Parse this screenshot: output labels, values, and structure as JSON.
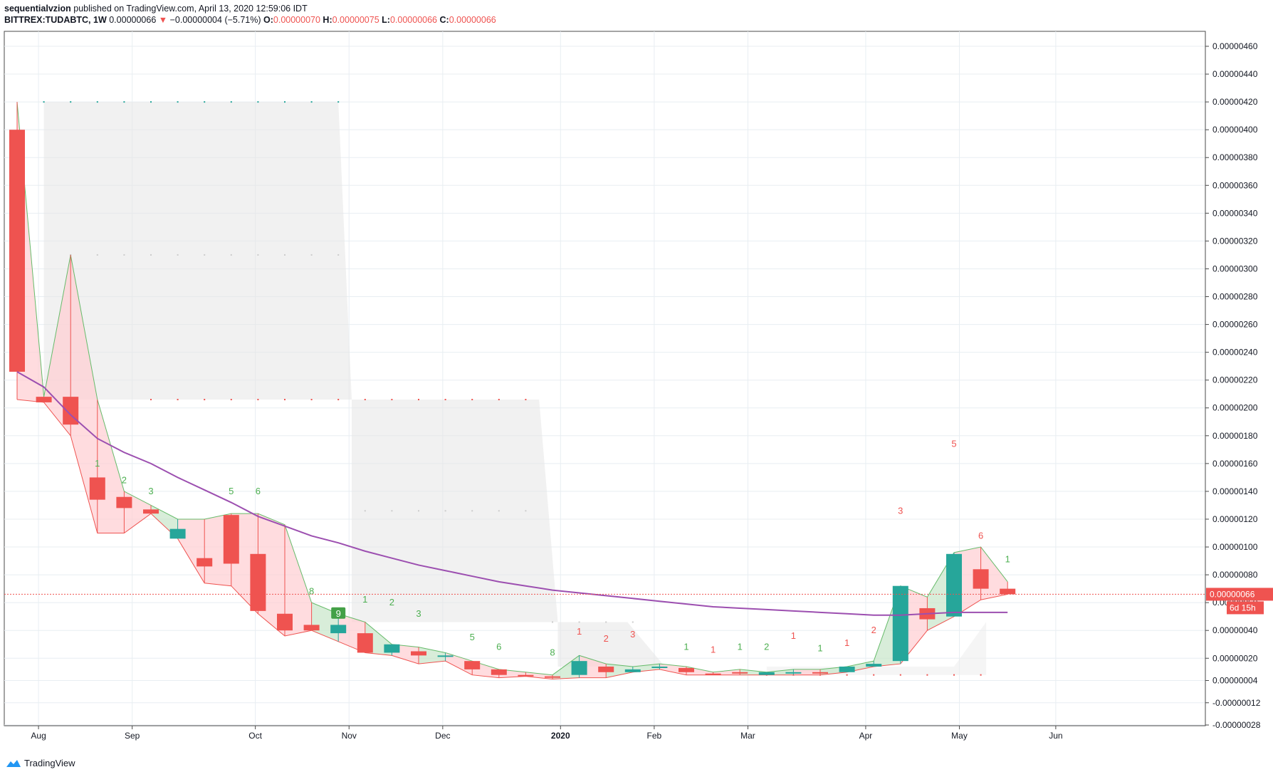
{
  "header": {
    "author": "sequentialvzion",
    "published_text": "published on TradingView.com, April 13, 2020 12:59:06 IDT",
    "symbol": "BITTREX:TUDABTC, 1W",
    "last": "0.00000066",
    "arrow": "▼",
    "change": "−0.00000004 (−5.71%)",
    "o_label": "O:",
    "o_value": "0.00000070",
    "h_label": "H:",
    "h_value": "0.00000075",
    "l_label": "L:",
    "l_value": "0.00000066",
    "c_label": "C:",
    "c_value": "0.00000066"
  },
  "footer": {
    "brand": "TradingView"
  },
  "colors": {
    "up": "#26a69a",
    "down": "#ef5350",
    "ma": "#9c4fb0",
    "grid": "#e8eef2",
    "label_bg": "#ef5350"
  },
  "chart_data": {
    "type": "candlestick",
    "xaxis_labels": [
      "Aug",
      "Sep",
      "Oct",
      "Nov",
      "Dec",
      "2020",
      "Feb",
      "Mar",
      "Apr",
      "May",
      "Jun"
    ],
    "yaxis_ticks": [
      "0.00000460",
      "0.00000440",
      "0.00000420",
      "0.00000400",
      "0.00000380",
      "0.00000360",
      "0.00000340",
      "0.00000320",
      "0.00000300",
      "0.00000280",
      "0.00000260",
      "0.00000240",
      "0.00000220",
      "0.00000200",
      "0.00000180",
      "0.00000160",
      "0.00000140",
      "0.00000120",
      "0.00000100",
      "0.00000080",
      "0.00000060",
      "0.00000040",
      "0.00000020",
      "0.00000004",
      "-0.00000012",
      "-0.00000028"
    ],
    "yaxis_values": [
      460,
      440,
      420,
      400,
      380,
      360,
      340,
      320,
      300,
      280,
      260,
      240,
      220,
      200,
      180,
      160,
      140,
      120,
      100,
      80,
      60,
      40,
      20,
      4,
      -12,
      -28
    ],
    "units": "1e-8 BTC",
    "last_price_label": "0.00000066",
    "countdown_label": "6d 15h",
    "candles": [
      {
        "o": 400,
        "h": 420,
        "l": 206,
        "c": 226
      },
      {
        "o": 208,
        "h": 206,
        "l": 206,
        "c": 204
      },
      {
        "o": 208,
        "h": 310,
        "l": 180,
        "c": 188
      },
      {
        "o": 150,
        "h": 206,
        "l": 110,
        "c": 134
      },
      {
        "o": 136,
        "h": 140,
        "l": 110,
        "c": 128
      },
      {
        "o": 127,
        "h": 130,
        "l": 124,
        "c": 124
      },
      {
        "o": 106,
        "h": 120,
        "l": 110,
        "c": 113
      },
      {
        "o": 92,
        "h": 120,
        "l": 74,
        "c": 86
      },
      {
        "o": 123,
        "h": 124,
        "l": 72,
        "c": 88
      },
      {
        "o": 95,
        "h": 124,
        "l": 52,
        "c": 54
      },
      {
        "o": 52,
        "h": 116,
        "l": 36,
        "c": 40
      },
      {
        "o": 44,
        "h": 60,
        "l": 42,
        "c": 40
      },
      {
        "o": 38,
        "h": 52,
        "l": 32,
        "c": 44
      },
      {
        "o": 38,
        "h": 46,
        "l": 26,
        "c": 24
      },
      {
        "o": 24,
        "h": 30,
        "l": 22,
        "c": 30
      },
      {
        "o": 25,
        "h": 28,
        "l": 16,
        "c": 22
      },
      {
        "o": 22,
        "h": 24,
        "l": 18,
        "c": 22
      },
      {
        "o": 18,
        "h": 18,
        "l": 8,
        "c": 12
      },
      {
        "o": 12,
        "h": 12,
        "l": 6,
        "c": 8
      },
      {
        "o": 8,
        "h": 10,
        "l": 7,
        "c": 7
      },
      {
        "o": 7,
        "h": 8,
        "l": 5,
        "c": 6
      },
      {
        "o": 8,
        "h": 22,
        "l": 6,
        "c": 18
      },
      {
        "o": 14,
        "h": 16,
        "l": 6,
        "c": 10
      },
      {
        "o": 10,
        "h": 14,
        "l": 10,
        "c": 12
      },
      {
        "o": 14,
        "h": 16,
        "l": 12,
        "c": 14
      },
      {
        "o": 13,
        "h": 14,
        "l": 8,
        "c": 10
      },
      {
        "o": 9,
        "h": 10,
        "l": 8,
        "c": 8
      },
      {
        "o": 10,
        "h": 12,
        "l": 8,
        "c": 9
      },
      {
        "o": 8,
        "h": 10,
        "l": 8,
        "c": 10
      },
      {
        "o": 10,
        "h": 12,
        "l": 8,
        "c": 10
      },
      {
        "o": 10,
        "h": 12,
        "l": 8,
        "c": 9
      },
      {
        "o": 10,
        "h": 14,
        "l": 10,
        "c": 14
      },
      {
        "o": 14,
        "h": 18,
        "l": 14,
        "c": 16
      },
      {
        "o": 18,
        "h": 70,
        "l": 16,
        "c": 72
      },
      {
        "o": 56,
        "h": 64,
        "l": 40,
        "c": 48
      },
      {
        "o": 50,
        "h": 96,
        "l": 50,
        "c": 95
      },
      {
        "o": 84,
        "h": 100,
        "l": 62,
        "c": 70
      },
      {
        "o": 70,
        "h": 75,
        "l": 66,
        "c": 66
      }
    ],
    "ma_series": [
      226,
      215,
      195,
      178,
      168,
      160,
      150,
      141,
      132,
      122,
      115,
      108,
      103,
      97,
      92,
      87,
      83,
      79,
      75,
      72,
      69,
      67,
      65,
      63,
      61,
      59,
      57,
      56,
      55,
      54,
      53,
      52,
      51,
      51,
      52,
      53,
      53,
      53
    ],
    "sequential_labels": [
      {
        "i": 3,
        "text": "1",
        "side": "green",
        "v": 160
      },
      {
        "i": 4,
        "text": "2",
        "side": "green",
        "v": 148
      },
      {
        "i": 5,
        "text": "3",
        "side": "green",
        "v": 140
      },
      {
        "i": 8,
        "text": "5",
        "side": "green",
        "v": 140
      },
      {
        "i": 9,
        "text": "6",
        "side": "green",
        "v": 140
      },
      {
        "i": 11,
        "text": "8",
        "side": "green",
        "v": 68
      },
      {
        "i": 12,
        "text": "9",
        "side": "green",
        "v": 52,
        "boxed": true
      },
      {
        "i": 13,
        "text": "1",
        "side": "green",
        "v": 62
      },
      {
        "i": 14,
        "text": "2",
        "side": "green",
        "v": 60
      },
      {
        "i": 15,
        "text": "3",
        "side": "green",
        "v": 52
      },
      {
        "i": 17,
        "text": "5",
        "side": "green",
        "v": 35
      },
      {
        "i": 18,
        "text": "6",
        "side": "green",
        "v": 28
      },
      {
        "i": 20,
        "text": "8",
        "side": "green",
        "v": 24
      },
      {
        "i": 21,
        "text": "1",
        "side": "red",
        "v": 39
      },
      {
        "i": 22,
        "text": "2",
        "side": "red",
        "v": 34
      },
      {
        "i": 23,
        "text": "3",
        "side": "red",
        "v": 37
      },
      {
        "i": 25,
        "text": "1",
        "side": "green",
        "v": 28
      },
      {
        "i": 26,
        "text": "1",
        "side": "red",
        "v": 26
      },
      {
        "i": 27,
        "text": "1",
        "side": "green",
        "v": 28
      },
      {
        "i": 28,
        "text": "2",
        "side": "green",
        "v": 28
      },
      {
        "i": 29,
        "text": "1",
        "side": "red",
        "v": 36
      },
      {
        "i": 30,
        "text": "1",
        "side": "green",
        "v": 27
      },
      {
        "i": 31,
        "text": "1",
        "side": "red",
        "v": 31
      },
      {
        "i": 32,
        "text": "2",
        "side": "red",
        "v": 40
      },
      {
        "i": 33,
        "text": "3",
        "side": "red",
        "v": 126
      },
      {
        "i": 35,
        "text": "5",
        "side": "red",
        "v": 174
      },
      {
        "i": 36,
        "text": "6",
        "side": "red",
        "v": 108
      },
      {
        "i": 37,
        "text": "1",
        "side": "green",
        "v": 91
      }
    ]
  }
}
